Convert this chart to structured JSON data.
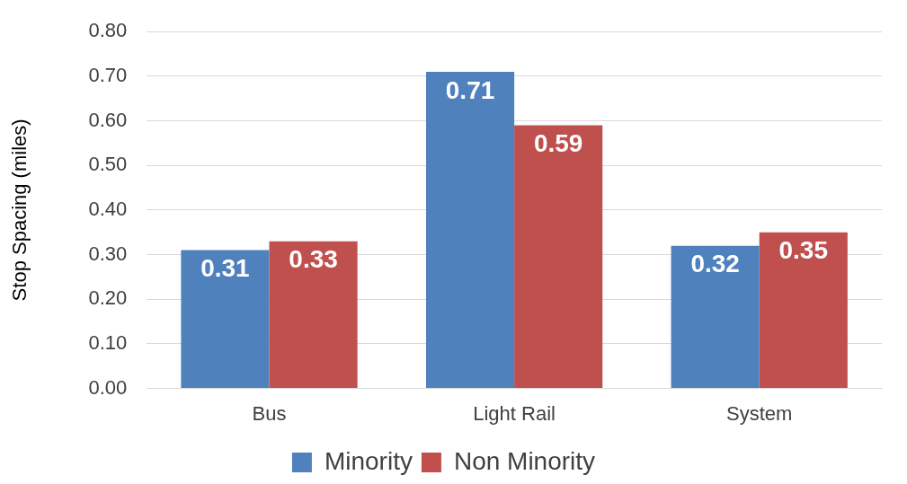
{
  "chart_data": {
    "type": "bar",
    "ylabel": "Stop Spacing (miles)",
    "categories": [
      "Bus",
      "Light Rail",
      "System"
    ],
    "series": [
      {
        "name": "Minority",
        "color": "#4f81bd",
        "values": [
          0.31,
          0.71,
          0.32
        ]
      },
      {
        "name": "Non Minority",
        "color": "#c0504d",
        "values": [
          0.33,
          0.59,
          0.35
        ]
      }
    ],
    "ylim": [
      0,
      0.8
    ],
    "yticks": [
      {
        "value": 0,
        "label": "0.00"
      },
      {
        "value": 0.1,
        "label": "0.10"
      },
      {
        "value": 0.2,
        "label": "0.20"
      },
      {
        "value": 0.3,
        "label": "0.30"
      },
      {
        "value": 0.4,
        "label": "0.40"
      },
      {
        "value": 0.5,
        "label": "0.50"
      },
      {
        "value": 0.6,
        "label": "0.60"
      },
      {
        "value": 0.7,
        "label": "0.70"
      },
      {
        "value": 0.8,
        "label": "0.80"
      }
    ],
    "grid": "y",
    "legend": "bottom",
    "data_labels": true
  }
}
